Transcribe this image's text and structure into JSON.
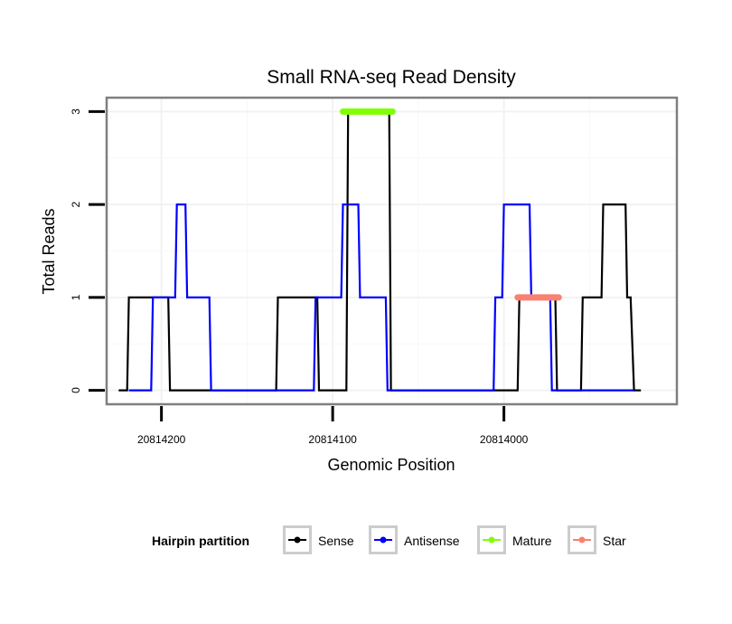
{
  "chart_data": {
    "type": "line",
    "title": "Small RNA-seq Read Density",
    "xlabel": "Genomic Position",
    "ylabel": "Total Reads",
    "x_reversed": true,
    "xlim": [
      20814232,
      20813899
    ],
    "ylim": [
      -0.15,
      3.15
    ],
    "x_ticks": [
      20814200,
      20814100,
      20814000
    ],
    "x_tick_labels": [
      "20814200",
      "20814100",
      "20814000"
    ],
    "y_ticks": [
      0,
      1,
      2,
      3
    ],
    "y_tick_labels": [
      "0",
      "1",
      "2",
      "3"
    ],
    "grid": true,
    "legend": {
      "title": "Hairpin partition",
      "position": "bottom",
      "entries": [
        "Sense",
        "Antisense",
        "Mature",
        "Star"
      ]
    },
    "series": [
      {
        "name": "Sense",
        "color": "#000000",
        "points": [
          [
            20814225,
            0
          ],
          [
            20814220,
            0
          ],
          [
            20814219,
            1
          ],
          [
            20814196,
            1
          ],
          [
            20814195,
            0
          ],
          [
            20814133,
            0
          ],
          [
            20814132,
            1
          ],
          [
            20814109,
            1
          ],
          [
            20814108,
            0
          ],
          [
            20814092,
            0
          ],
          [
            20814091,
            3
          ],
          [
            20814067,
            3
          ],
          [
            20814066,
            0
          ],
          [
            20813992,
            0
          ],
          [
            20813991,
            1
          ],
          [
            20813970,
            1
          ],
          [
            20813969,
            0
          ],
          [
            20813955,
            0
          ],
          [
            20813954,
            1
          ],
          [
            20813943,
            1
          ],
          [
            20813942,
            2
          ],
          [
            20813929,
            2
          ],
          [
            20813928,
            1
          ],
          [
            20813926,
            1
          ],
          [
            20813924,
            0
          ],
          [
            20813920,
            0
          ]
        ]
      },
      {
        "name": "Antisense",
        "color": "#0000ff",
        "points": [
          [
            20814219,
            0
          ],
          [
            20814206,
            0
          ],
          [
            20814205,
            1
          ],
          [
            20814192,
            1
          ],
          [
            20814191,
            2
          ],
          [
            20814186,
            2
          ],
          [
            20814185,
            1
          ],
          [
            20814172,
            1
          ],
          [
            20814171,
            0
          ],
          [
            20814111,
            0
          ],
          [
            20814110,
            1
          ],
          [
            20814095,
            1
          ],
          [
            20814094,
            2
          ],
          [
            20814085,
            2
          ],
          [
            20814084,
            1
          ],
          [
            20814069,
            1
          ],
          [
            20814068,
            0
          ],
          [
            20814006,
            0
          ],
          [
            20814005,
            1
          ],
          [
            20814001,
            1
          ],
          [
            20814000,
            2
          ],
          [
            20813985,
            2
          ],
          [
            20813984,
            1
          ],
          [
            20813973,
            1
          ],
          [
            20813972,
            0
          ],
          [
            20813924,
            0
          ]
        ]
      },
      {
        "name": "Mature",
        "color": "#80ff00",
        "points": [
          [
            20814094,
            3
          ],
          [
            20814065,
            3
          ]
        ]
      },
      {
        "name": "Star",
        "color": "#fa8072",
        "points": [
          [
            20813992,
            1
          ],
          [
            20813968,
            1
          ]
        ]
      }
    ]
  }
}
